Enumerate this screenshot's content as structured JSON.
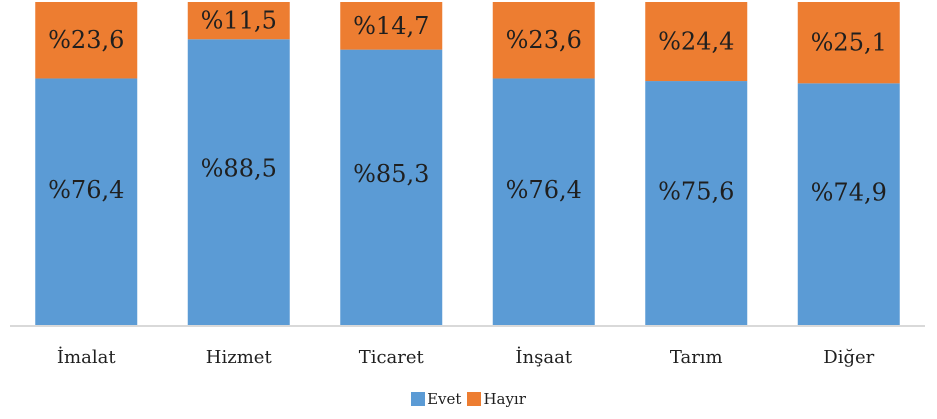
{
  "chart_data": {
    "type": "bar",
    "stacked": true,
    "categories": [
      "İmalat",
      "Hizmet",
      "Ticaret",
      "İnşaat",
      "Tarım",
      "Diğer"
    ],
    "series": [
      {
        "name": "Evet",
        "color": "#5b9bd5",
        "values": [
          76.4,
          88.5,
          85.3,
          76.4,
          75.6,
          74.9
        ],
        "labels": [
          "%76,4",
          "%88,5",
          "%85,3",
          "%76,4",
          "%75,6",
          "%74,9"
        ]
      },
      {
        "name": "Hayır",
        "color": "#ed7d31",
        "values": [
          23.6,
          11.5,
          14.7,
          23.6,
          24.4,
          25.1
        ],
        "labels": [
          "%23,6",
          "%11,5",
          "%14,7",
          "%23,6",
          "%24,4",
          "%25,1"
        ]
      }
    ],
    "ylim": [
      0,
      100
    ],
    "grid": false,
    "legend": "bottom"
  }
}
